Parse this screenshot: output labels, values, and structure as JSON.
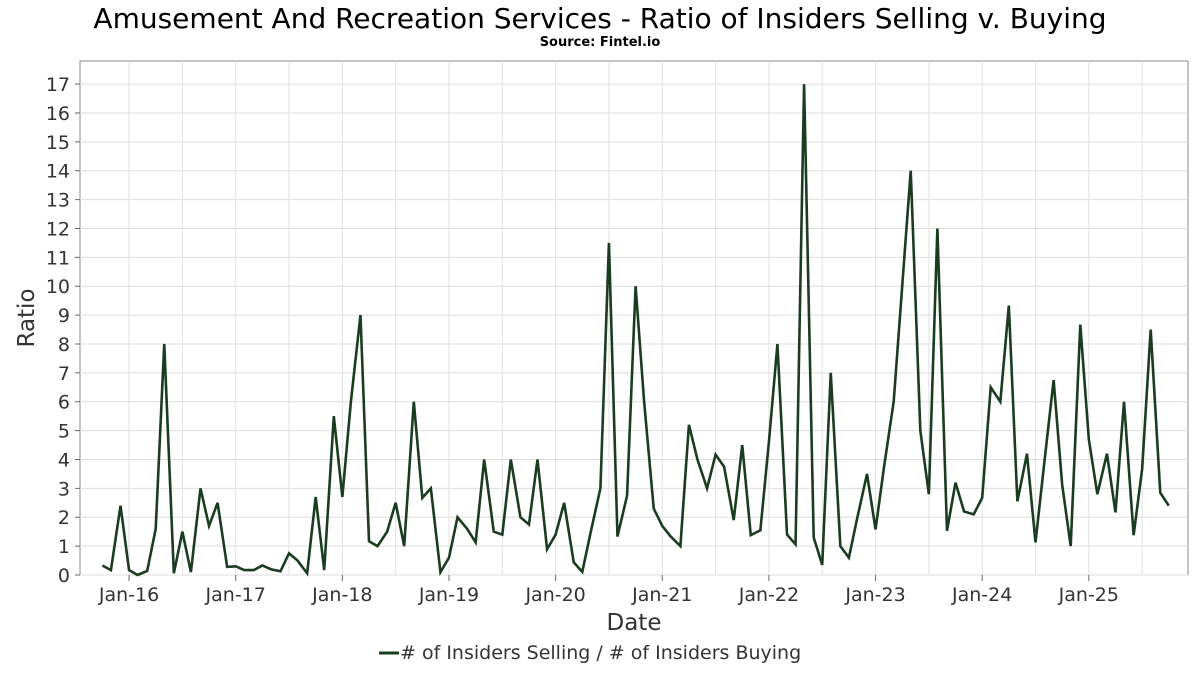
{
  "chart_data": {
    "type": "line",
    "title": "Amusement And Recreation Services - Ratio of Insiders Selling v. Buying",
    "subtitle": "Source: Fintel.io",
    "xlabel": "Date",
    "ylabel": "Ratio",
    "ylim": [
      0,
      17.8
    ],
    "yticks": [
      0,
      1,
      2,
      3,
      4,
      5,
      6,
      7,
      8,
      9,
      10,
      11,
      12,
      13,
      14,
      15,
      16,
      17
    ],
    "xticks": [
      {
        "label": "Jan-16",
        "t": 2016.0
      },
      {
        "label": "Jan-17",
        "t": 2017.0
      },
      {
        "label": "Jan-18",
        "t": 2018.0
      },
      {
        "label": "Jan-19",
        "t": 2019.0
      },
      {
        "label": "Jan-20",
        "t": 2020.0
      },
      {
        "label": "Jan-21",
        "t": 2021.0
      },
      {
        "label": "Jan-22",
        "t": 2022.0
      },
      {
        "label": "Jan-23",
        "t": 2023.0
      },
      {
        "label": "Jan-24",
        "t": 2024.0
      },
      {
        "label": "Jan-25",
        "t": 2025.0
      }
    ],
    "xlim": [
      2015.54,
      2025.93
    ],
    "grid": true,
    "legend_position": "bottom",
    "series": [
      {
        "name": "# of Insiders Selling / # of Insiders Buying",
        "color": "#1a3d1f",
        "points": [
          [
            2015.75,
            0.33
          ],
          [
            2015.83,
            0.17
          ],
          [
            2015.92,
            2.4
          ],
          [
            2016.0,
            0.17
          ],
          [
            2016.08,
            0.0
          ],
          [
            2016.17,
            0.14
          ],
          [
            2016.25,
            1.6
          ],
          [
            2016.33,
            8.0
          ],
          [
            2016.42,
            0.06
          ],
          [
            2016.5,
            1.5
          ],
          [
            2016.58,
            0.1
          ],
          [
            2016.67,
            3.0
          ],
          [
            2016.75,
            1.7
          ],
          [
            2016.83,
            2.5
          ],
          [
            2016.92,
            0.28
          ],
          [
            2017.0,
            0.3
          ],
          [
            2017.08,
            0.17
          ],
          [
            2017.17,
            0.17
          ],
          [
            2017.25,
            0.33
          ],
          [
            2017.33,
            0.2
          ],
          [
            2017.42,
            0.13
          ],
          [
            2017.5,
            0.75
          ],
          [
            2017.58,
            0.5
          ],
          [
            2017.67,
            0.06
          ],
          [
            2017.75,
            2.7
          ],
          [
            2017.83,
            0.17
          ],
          [
            2017.92,
            5.5
          ],
          [
            2018.0,
            2.7
          ],
          [
            2018.08,
            6.0
          ],
          [
            2018.17,
            9.0
          ],
          [
            2018.25,
            1.17
          ],
          [
            2018.33,
            1.0
          ],
          [
            2018.42,
            1.5
          ],
          [
            2018.5,
            2.5
          ],
          [
            2018.58,
            1.0
          ],
          [
            2018.67,
            6.0
          ],
          [
            2018.75,
            2.67
          ],
          [
            2018.83,
            3.0
          ],
          [
            2018.92,
            0.1
          ],
          [
            2019.0,
            0.6
          ],
          [
            2019.08,
            2.0
          ],
          [
            2019.17,
            1.6
          ],
          [
            2019.25,
            1.13
          ],
          [
            2019.33,
            4.0
          ],
          [
            2019.42,
            1.5
          ],
          [
            2019.5,
            1.4
          ],
          [
            2019.58,
            4.0
          ],
          [
            2019.67,
            2.0
          ],
          [
            2019.75,
            1.75
          ],
          [
            2019.83,
            4.0
          ],
          [
            2019.92,
            0.89
          ],
          [
            2020.0,
            1.4
          ],
          [
            2020.08,
            2.5
          ],
          [
            2020.17,
            0.44
          ],
          [
            2020.25,
            0.11
          ],
          [
            2020.33,
            1.5
          ],
          [
            2020.42,
            3.0
          ],
          [
            2020.5,
            11.5
          ],
          [
            2020.58,
            1.33
          ],
          [
            2020.67,
            2.75
          ],
          [
            2020.75,
            10.0
          ],
          [
            2020.83,
            6.0
          ],
          [
            2020.92,
            2.3
          ],
          [
            2021.0,
            1.7
          ],
          [
            2021.08,
            1.33
          ],
          [
            2021.17,
            1.0
          ],
          [
            2021.25,
            5.2
          ],
          [
            2021.33,
            4.0
          ],
          [
            2021.42,
            3.0
          ],
          [
            2021.5,
            4.17
          ],
          [
            2021.58,
            3.75
          ],
          [
            2021.67,
            1.9
          ],
          [
            2021.75,
            4.5
          ],
          [
            2021.83,
            1.38
          ],
          [
            2021.92,
            1.55
          ],
          [
            2022.0,
            4.6
          ],
          [
            2022.08,
            8.0
          ],
          [
            2022.17,
            1.4
          ],
          [
            2022.25,
            1.06
          ],
          [
            2022.33,
            17.0
          ],
          [
            2022.42,
            1.3
          ],
          [
            2022.5,
            0.35
          ],
          [
            2022.58,
            7.0
          ],
          [
            2022.67,
            1.0
          ],
          [
            2022.75,
            0.6
          ],
          [
            2022.83,
            2.0
          ],
          [
            2022.92,
            3.5
          ],
          [
            2023.0,
            1.58
          ],
          [
            2023.08,
            3.75
          ],
          [
            2023.17,
            6.0
          ],
          [
            2023.25,
            10.0
          ],
          [
            2023.33,
            14.0
          ],
          [
            2023.42,
            5.0
          ],
          [
            2023.5,
            2.8
          ],
          [
            2023.58,
            12.0
          ],
          [
            2023.67,
            1.53
          ],
          [
            2023.75,
            3.2
          ],
          [
            2023.83,
            2.2
          ],
          [
            2023.92,
            2.1
          ],
          [
            2024.0,
            2.67
          ],
          [
            2024.08,
            6.5
          ],
          [
            2024.17,
            6.0
          ],
          [
            2024.25,
            9.33
          ],
          [
            2024.33,
            2.55
          ],
          [
            2024.42,
            4.2
          ],
          [
            2024.5,
            1.13
          ],
          [
            2024.58,
            3.8
          ],
          [
            2024.67,
            6.75
          ],
          [
            2024.75,
            3.13
          ],
          [
            2024.83,
            1.0
          ],
          [
            2024.92,
            8.67
          ],
          [
            2025.0,
            4.7
          ],
          [
            2025.08,
            2.8
          ],
          [
            2025.17,
            4.2
          ],
          [
            2025.25,
            2.17
          ],
          [
            2025.33,
            6.0
          ],
          [
            2025.42,
            1.38
          ],
          [
            2025.5,
            3.67
          ],
          [
            2025.58,
            8.5
          ],
          [
            2025.67,
            2.85
          ],
          [
            2025.75,
            2.4
          ]
        ]
      }
    ]
  }
}
